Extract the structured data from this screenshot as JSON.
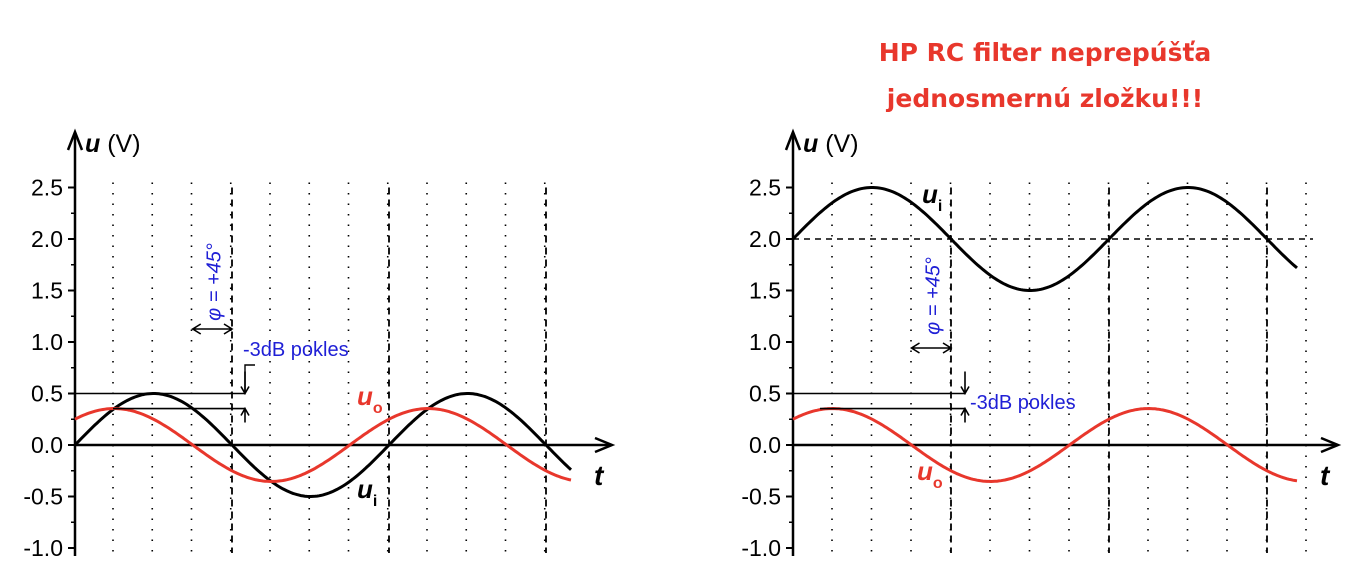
{
  "title_lines": [
    "HP RC filter neprepúšťa",
    "jednosmernú zložku!!!"
  ],
  "colors": {
    "input": "#000000",
    "output": "#e8372c",
    "annotation": "#1f1fd6",
    "title": "#e8372c"
  },
  "chart_data": [
    {
      "type": "line",
      "ylabel": {
        "symbol": "u",
        "unit": "(V)"
      },
      "xlabel": "t",
      "ylim": [
        -1.0,
        2.5
      ],
      "yticks": [
        "2.5",
        "2.0",
        "1.5",
        "1.0",
        "0.5",
        "0.0",
        "-0.5",
        "-1.0"
      ],
      "grid": "dotted vertical",
      "series": [
        {
          "label_main": "u",
          "label_sub": "i",
          "color": "#000000",
          "offset": 0.0,
          "amplitude": 0.5,
          "phase_deg": 0
        },
        {
          "label_main": "u",
          "label_sub": "o",
          "color": "#e8372c",
          "offset": 0.0,
          "amplitude": 0.354,
          "phase_deg": 45
        }
      ],
      "annotations": {
        "phase": "φ = +45°",
        "attenuation": "-3dB pokles"
      }
    },
    {
      "type": "line",
      "ylabel": {
        "symbol": "u",
        "unit": "(V)"
      },
      "xlabel": "t",
      "ylim": [
        -1.0,
        2.5
      ],
      "yticks": [
        "2.5",
        "2.0",
        "1.5",
        "1.0",
        "0.5",
        "0.0",
        "-0.5",
        "-1.0"
      ],
      "grid": "dotted vertical",
      "dc_level": 2.0,
      "series": [
        {
          "label_main": "u",
          "label_sub": "i",
          "color": "#000000",
          "offset": 2.0,
          "amplitude": 0.5,
          "phase_deg": 0
        },
        {
          "label_main": "u",
          "label_sub": "o",
          "color": "#e8372c",
          "offset": 0.0,
          "amplitude": 0.354,
          "phase_deg": 45
        }
      ],
      "annotations": {
        "phase": "φ = +45°",
        "attenuation": "-3dB pokles"
      }
    }
  ]
}
